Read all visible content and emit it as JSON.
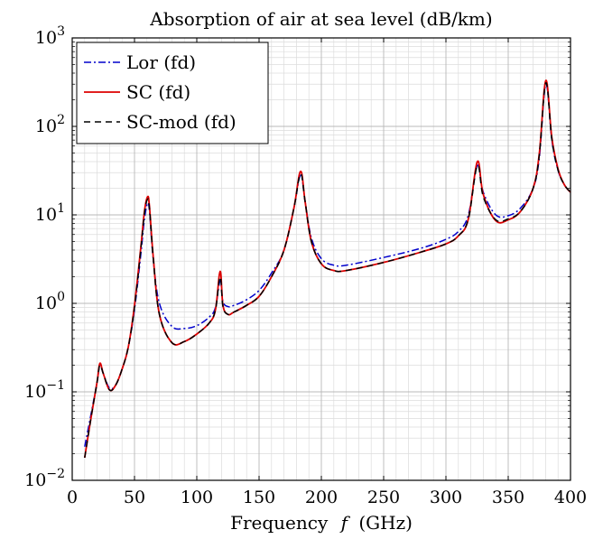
{
  "chart_data": {
    "type": "line",
    "title": "Absorption of air at sea level  (dB/km)",
    "xlabel": "Frequency",
    "xlabel_symbol": "f",
    "xlabel_unit": "(GHz)",
    "ylabel": "",
    "xlim": [
      0,
      400
    ],
    "ylim": [
      0.01,
      1000
    ],
    "yscale": "log",
    "grid": true,
    "legend_position": "top-left",
    "xticks": [
      "0",
      "50",
      "100",
      "150",
      "200",
      "250",
      "300",
      "350",
      "400"
    ],
    "yticks": [
      {
        "base": "10",
        "exp": "−2"
      },
      {
        "base": "10",
        "exp": "−1"
      },
      {
        "base": "10",
        "exp": "0"
      },
      {
        "base": "10",
        "exp": "1"
      },
      {
        "base": "10",
        "exp": "2"
      },
      {
        "base": "10",
        "exp": "3"
      }
    ],
    "x": [
      10,
      15,
      20,
      22.2,
      25,
      30,
      35,
      40,
      45,
      50,
      55,
      58,
      60.5,
      62,
      65,
      70,
      80,
      90,
      100,
      110,
      115,
      118.75,
      121,
      125,
      130,
      140,
      150,
      160,
      170,
      178,
      183.3,
      187,
      192,
      200,
      210,
      220,
      250,
      280,
      300,
      310,
      318,
      325.2,
      330,
      340,
      350,
      360,
      370,
      375,
      380.2,
      385,
      390,
      395,
      400
    ],
    "series": [
      {
        "name": "Lor (fd)",
        "color": "#0000cc",
        "dash": "dashdot",
        "values": [
          0.024,
          0.055,
          0.13,
          0.2,
          0.16,
          0.11,
          0.12,
          0.18,
          0.32,
          0.85,
          3.5,
          9.0,
          13.5,
          11.0,
          3.2,
          1.0,
          0.55,
          0.52,
          0.56,
          0.7,
          0.9,
          1.8,
          1.05,
          0.92,
          0.95,
          1.1,
          1.4,
          2.2,
          4.0,
          12.0,
          28.0,
          14.0,
          5.5,
          3.2,
          2.7,
          2.7,
          3.3,
          4.2,
          5.3,
          6.5,
          10.0,
          36.0,
          18.0,
          10.0,
          9.8,
          12.0,
          20.0,
          45.0,
          300.0,
          70.0,
          32.0,
          22.0,
          18.0
        ]
      },
      {
        "name": "SC (fd)",
        "color": "#dd0000",
        "dash": "solid",
        "values": [
          0.018,
          0.05,
          0.13,
          0.21,
          0.16,
          0.105,
          0.12,
          0.18,
          0.32,
          0.95,
          4.2,
          11.0,
          16.0,
          12.5,
          3.4,
          0.75,
          0.36,
          0.37,
          0.45,
          0.6,
          0.85,
          2.3,
          0.95,
          0.75,
          0.8,
          0.95,
          1.2,
          2.0,
          4.0,
          12.0,
          31.0,
          14.0,
          5.0,
          2.8,
          2.35,
          2.35,
          2.9,
          3.8,
          4.7,
          5.8,
          9.0,
          40.0,
          17.0,
          8.6,
          8.8,
          11.0,
          20.0,
          50.0,
          330.0,
          75.0,
          33.0,
          22.0,
          18.0
        ]
      },
      {
        "name": "SC-mod (fd)",
        "color": "#000000",
        "dash": "dashed",
        "values": [
          0.018,
          0.05,
          0.13,
          0.2,
          0.16,
          0.105,
          0.12,
          0.18,
          0.32,
          0.9,
          4.0,
          10.5,
          15.0,
          12.0,
          3.3,
          0.75,
          0.36,
          0.37,
          0.45,
          0.6,
          0.85,
          2.0,
          0.92,
          0.75,
          0.8,
          0.95,
          1.2,
          2.0,
          4.0,
          12.0,
          29.0,
          14.0,
          5.0,
          2.8,
          2.35,
          2.35,
          2.9,
          3.8,
          4.7,
          5.8,
          9.0,
          36.0,
          16.0,
          8.8,
          9.0,
          11.0,
          20.0,
          48.0,
          310.0,
          72.0,
          32.0,
          22.0,
          18.0
        ]
      }
    ]
  }
}
